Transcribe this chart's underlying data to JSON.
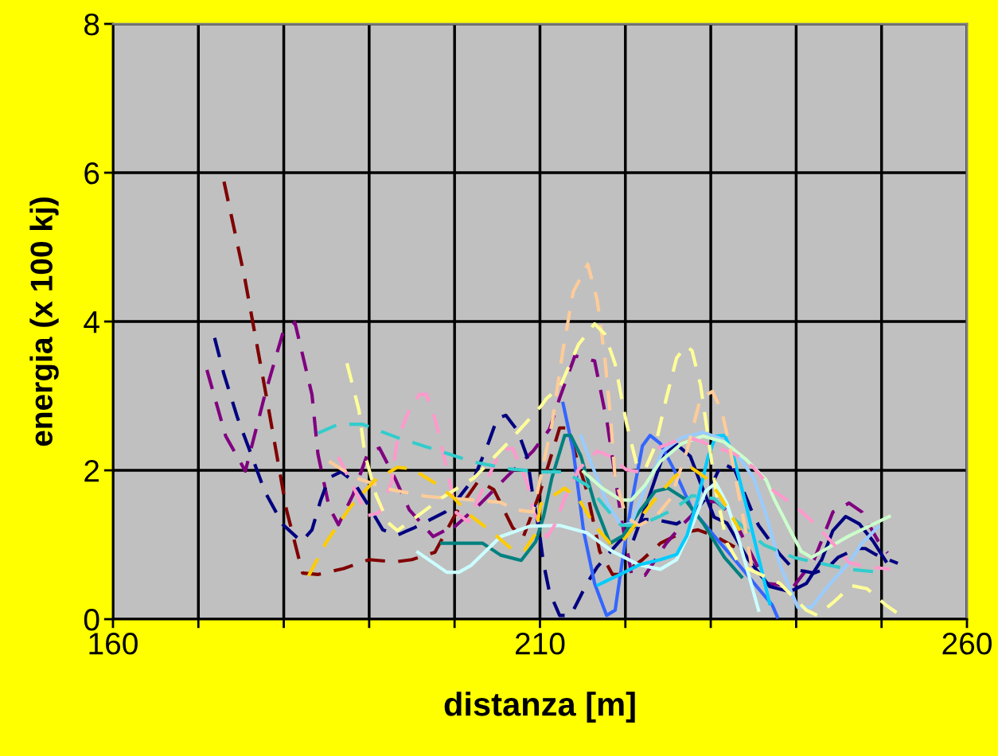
{
  "chart_data": {
    "type": "line",
    "xlabel": "distanza [m]",
    "ylabel": "energia (x 100 kj)",
    "xlim": [
      160,
      260
    ],
    "xticks": [
      160,
      {
        "value": 170,
        "label": null
      },
      {
        "value": 180,
        "label": null
      },
      {
        "value": 190,
        "label": null
      },
      {
        "value": 200,
        "label": null
      },
      210,
      {
        "value": 220,
        "label": null
      },
      {
        "value": 230,
        "label": null
      },
      {
        "value": 240,
        "label": null
      },
      {
        "value": 250,
        "label": null
      },
      260
    ],
    "ylim": [
      0,
      8
    ],
    "yticks": [
      0,
      2,
      4,
      6,
      8
    ],
    "grid": true,
    "marker": "none",
    "series": [
      {
        "color": "#800000",
        "line_style": "dashed",
        "x": [
          173,
          175.4,
          178,
          180.3,
          182.2,
          184,
          187,
          190,
          193,
          195,
          197.7,
          200.2,
          202.8,
          204.6,
          206.8,
          208,
          210,
          212.3,
          213.2,
          215.5,
          217,
          218.5,
          219.7,
          222,
          224.1,
          226.6,
          228.5,
          230.4,
          232.8
        ],
        "values": [
          5.88,
          4.6,
          2.97,
          1.48,
          0.62,
          0.6,
          0.68,
          0.8,
          0.77,
          0.8,
          0.9,
          1.43,
          1.86,
          1.74,
          1.23,
          1.09,
          1.7,
          2.57,
          2.57,
          1.72,
          0.91,
          0.6,
          0.6,
          0.8,
          1.02,
          1.16,
          1.2,
          1.12,
          0.97
        ]
      },
      {
        "color": "#800080",
        "line_style": "dashed",
        "x": [
          171,
          173.2,
          175.5,
          177.8,
          179.9,
          181.3,
          183.3,
          184,
          185.3,
          186.4,
          188.1,
          189.8,
          191.2,
          193,
          194.7,
          197.5,
          199.5
        ],
        "values": [
          3.35,
          2.46,
          1.99,
          3.02,
          3.85,
          3.99,
          3.02,
          2.22,
          1.51,
          1.27,
          1.67,
          2.22,
          2.3,
          1.9,
          1.47,
          1.11,
          1.23
        ]
      },
      {
        "color": "#800080",
        "line_style": "dashed",
        "x": [
          199.9,
          203,
          206,
          209.2,
          211.1,
          212.3,
          214.1,
          216.4,
          217.9,
          219.5,
          220.7,
          222.3,
          224.8,
          226.6,
          229.4,
          230.6,
          232.5,
          234.1,
          236.5,
          239.7,
          242.1,
          244.3,
          246.2,
          247.7,
          249.6,
          250.7
        ],
        "values": [
          1.23,
          1.55,
          1.9,
          2.26,
          2.55,
          2.97,
          3.54,
          3.47,
          2.62,
          1.37,
          0.62,
          0.59,
          1.02,
          1.26,
          1.58,
          1.58,
          1.4,
          1.02,
          0.48,
          0.44,
          0.8,
          1.44,
          1.56,
          1.44,
          1.05,
          0.89
        ]
      },
      {
        "color": "#000080",
        "line_style": "dashed",
        "x": [
          171.9,
          173,
          174.6,
          176,
          177.8,
          179.9,
          182.1,
          183.3,
          184.3,
          185.3,
          186.7,
          188.1,
          189.8,
          191.6,
          193.3,
          195.3,
          198.9,
          200.2,
          202.3,
          204,
          205,
          206,
          207.4,
          208.5,
          209.2,
          209.9,
          210.4,
          211.1,
          212.3,
          213.6,
          215.5,
          216.7,
          218.5,
          220.4,
          222.3,
          223.5,
          226,
          227.8,
          229.4,
          231.3,
          232.8,
          234.7,
          235.6,
          238.1,
          239.7,
          242.1,
          243.7,
          244.9,
          247.1,
          248.1,
          249.3,
          251.9
        ],
        "values": [
          3.78,
          3.29,
          2.7,
          2.27,
          1.71,
          1.27,
          1.04,
          1.2,
          1.59,
          1.9,
          1.98,
          1.86,
          1.55,
          1.2,
          1.13,
          1.23,
          1.44,
          1.59,
          1.9,
          2.38,
          2.7,
          2.74,
          2.53,
          2.18,
          1.63,
          1.19,
          0.76,
          0.37,
          0.05,
          0.05,
          0.48,
          0.7,
          0.94,
          1.19,
          1.34,
          1.34,
          1.28,
          1.4,
          1.62,
          2.1,
          2.01,
          1.48,
          1.26,
          0.87,
          0.67,
          0.62,
          0.69,
          0.83,
          0.95,
          0.95,
          0.87,
          0.75
        ]
      },
      {
        "color": "#000080",
        "line_style": "solid",
        "x": [
          221,
          222.5,
          224.4,
          226,
          227.6,
          228.8,
          230.4,
          231.9,
          234.4,
          236.9,
          239.3,
          241.2,
          243,
          244.3,
          245.8,
          247.4,
          249,
          250.5
        ],
        "values": [
          1.08,
          1.55,
          2.19,
          2.35,
          2.19,
          1.83,
          1.37,
          1.29,
          0.8,
          0.44,
          0.37,
          0.48,
          0.8,
          1.19,
          1.38,
          1.28,
          1.05,
          0.78
        ]
      },
      {
        "color": "#3366ff",
        "line_style": "solid",
        "x": [
          212.7,
          213.9,
          215.1,
          216.4,
          217.8,
          218.8,
          219.7,
          220.7,
          222,
          222.9,
          224.1,
          225.7,
          227.8,
          230.4,
          232.8,
          235.6,
          237.2,
          237.8
        ],
        "values": [
          2.9,
          2.26,
          1.19,
          0.48,
          0.05,
          0.12,
          0.83,
          1.55,
          2.33,
          2.47,
          2.36,
          2.01,
          1.48,
          1.12,
          0.8,
          0.41,
          0.19,
          0.03
        ]
      },
      {
        "color": "#008080",
        "line_style": "solid",
        "x": [
          198.5,
          203.3,
          205.4,
          207.8,
          209.5,
          210.4,
          211.4,
          212.9,
          213.6,
          214.8,
          216.4,
          218.2,
          219.7,
          221.6,
          223.5,
          225,
          226.9,
          229.1,
          231.6,
          233.6
        ],
        "values": [
          1.02,
          1.02,
          0.86,
          0.79,
          1.04,
          1.37,
          1.9,
          2.47,
          2.47,
          2.19,
          1.55,
          1.02,
          1.12,
          1.44,
          1.72,
          1.76,
          1.62,
          1.29,
          0.83,
          0.57
        ]
      },
      {
        "color": "#ccffff",
        "line_style": "solid",
        "x": [
          195.7,
          199.1,
          200.5,
          201.9,
          205.4,
          208.8,
          212.3,
          215.5,
          218.5,
          221.6,
          224.1,
          226,
          227.6,
          229.4,
          230.6,
          231.9,
          233.4,
          235.6
        ],
        "values": [
          0.9,
          0.63,
          0.63,
          0.72,
          1.11,
          1.25,
          1.26,
          1.16,
          0.91,
          0.73,
          0.67,
          0.8,
          1.19,
          1.72,
          1.83,
          1.55,
          1.02,
          0.12
        ]
      },
      {
        "color": "#00ccff",
        "line_style": "solid",
        "x": [
          216.8,
          219.2,
          221.6,
          224.1,
          226,
          227.2,
          228.5,
          229.7,
          230.6,
          231.6,
          232.5,
          234.1,
          235.6,
          236.9
        ],
        "values": [
          0.46,
          0.59,
          0.73,
          0.8,
          0.87,
          1.12,
          1.62,
          2.19,
          2.46,
          2.47,
          2.26,
          1.55,
          0.83,
          0.21
        ]
      },
      {
        "color": "#99ccff",
        "line_style": "solid",
        "x": [
          214.8,
          216.4,
          217.9,
          219.5,
          220.7,
          222.3,
          224.4,
          226.6,
          229.1,
          230.9,
          232.8,
          235,
          236.5,
          238.1,
          240.2,
          241.8,
          243.7,
          246.2,
          247.7,
          249.6
        ],
        "values": [
          2.46,
          1.98,
          1.55,
          1.26,
          1.29,
          1.76,
          2.26,
          2.44,
          2.51,
          2.44,
          2.26,
          1.9,
          1.4,
          0.73,
          0.16,
          0.16,
          0.44,
          0.76,
          1.02,
          1.24
        ]
      },
      {
        "color": "#ccffcc",
        "line_style": "solid",
        "x": [
          215.1,
          217.3,
          219.5,
          220.7,
          222.3,
          224.1,
          226.6,
          229.1,
          231.6,
          234.1,
          236.5,
          237.4,
          239,
          240.6,
          241.8,
          243,
          246.2,
          250.9
        ],
        "values": [
          1.98,
          1.76,
          1.6,
          1.6,
          1.8,
          2.12,
          2.36,
          2.46,
          2.38,
          2.15,
          1.87,
          1.62,
          1.26,
          0.91,
          0.83,
          0.91,
          1.12,
          1.38
        ]
      },
      {
        "color": "#ff99cc",
        "line_style": "dashed",
        "x": [
          186.4,
          189.8,
          191.2,
          192.6,
          193.3,
          194.7,
          195.9,
          196.7,
          197.7,
          199.1,
          200.2,
          201.6,
          203.6,
          205.4,
          206.8,
          208.5,
          209.3,
          210.8,
          211.7,
          212.9,
          214.5,
          216.7,
          218.2,
          220.1,
          221.6,
          222.9
        ],
        "values": [
          2.18,
          1.39,
          1.43,
          1.83,
          2.42,
          2.81,
          3.02,
          3.02,
          2.7,
          2.02,
          1.43,
          1.31,
          1.83,
          2.26,
          2.3,
          1.83,
          1.43,
          1.1,
          1.26,
          1.62,
          2.01,
          2.26,
          2.19,
          2.01,
          1.98,
          2.09
        ]
      },
      {
        "color": "#ff99cc",
        "line_style": "dashed",
        "x": [
          223.8,
          226.3,
          228.1,
          230.9,
          232.8,
          235,
          237.4,
          240,
          242.1,
          244.3,
          246.2,
          248.1,
          251
        ],
        "values": [
          2.3,
          2.41,
          2.42,
          2.3,
          2.22,
          2.04,
          1.72,
          1.51,
          1.29,
          1.02,
          0.76,
          0.71,
          0.67
        ]
      },
      {
        "color": "#33cccc",
        "line_style": "dashed",
        "x": [
          184,
          186.4,
          189.2,
          193.3,
          197.7,
          202.3,
          206.4,
          210.1,
          212.9,
          215.5,
          217.6,
          219.5,
          221.6,
          223.8,
          225.7,
          227.8,
          230.4,
          232.8,
          236.2,
          239.7,
          242.8,
          246.2,
          249
        ],
        "values": [
          2.5,
          2.62,
          2.62,
          2.44,
          2.28,
          2.11,
          2.02,
          1.98,
          1.98,
          1.8,
          1.51,
          1.26,
          1.26,
          1.37,
          1.48,
          1.66,
          1.62,
          1.34,
          1.0,
          0.83,
          0.75,
          0.67,
          0.64
        ]
      },
      {
        "color": "#ffcc99",
        "line_style": "dashed",
        "x": [
          185.3,
          188.4,
          192.6,
          196.7,
          202.3,
          205.4,
          207.1,
          209.2,
          211.4,
          212.7,
          213.9,
          215.6,
          216.7,
          217.6,
          218.2,
          218.8,
          220.1,
          221.6,
          223.5,
          225.3,
          227.2,
          228.8,
          230.2,
          231.3,
          232.2,
          233.2,
          234.1,
          235
        ],
        "values": [
          2.12,
          1.9,
          1.74,
          1.65,
          1.6,
          1.57,
          1.47,
          1.44,
          2.62,
          3.62,
          4.4,
          4.77,
          4.29,
          3.51,
          2.79,
          1.9,
          1.37,
          1.26,
          1.37,
          1.62,
          2.26,
          2.97,
          3.06,
          2.79,
          2.33,
          1.72,
          1.19,
          0.55
        ]
      },
      {
        "color": "#ffff99",
        "line_style": "dashed",
        "x": [
          187.4,
          188.8,
          189.5,
          190.8,
          192.2,
          193.3,
          195.7,
          198.5,
          202.3,
          206,
          210.1,
          210.8,
          212.3,
          214.5,
          216.4,
          217.6,
          218.8,
          220.1,
          221.3,
          222.3,
          223.5,
          224.8,
          226,
          227.1,
          227.8,
          228.8,
          229.7,
          230.6,
          231.9,
          233.4,
          238.1,
          241.2,
          242.5,
          244.3,
          246.5,
          248.3,
          250.5,
          252.1
        ],
        "values": [
          3.44,
          2.81,
          2.22,
          1.67,
          1.3,
          1.19,
          1.39,
          1.63,
          1.9,
          2.34,
          2.86,
          2.97,
          3.11,
          3.69,
          3.97,
          3.83,
          3.43,
          2.65,
          2.09,
          2.01,
          2.33,
          2.97,
          3.51,
          3.67,
          3.61,
          3.15,
          2.44,
          1.72,
          1.02,
          0.73,
          0.48,
          0.12,
          0.05,
          0.22,
          0.45,
          0.41,
          0.19,
          0.06
        ]
      },
      {
        "color": "#ffcc00",
        "line_style": "dashed",
        "x": [
          182.9,
          185,
          187.8,
          190.6,
          193.3,
          195,
          197.7,
          199.9,
          201.9,
          204.6,
          206.8,
          208.2,
          209.5,
          210.1,
          212.9,
          214.5,
          216.4,
          218.2,
          219.7,
          221.6,
          223.8,
          226,
          227.8,
          229.4,
          230.9,
          232.2,
          233.4
        ],
        "values": [
          0.58,
          1.04,
          1.51,
          1.86,
          2.04,
          2.02,
          1.83,
          1.63,
          1.39,
          1.15,
          0.93,
          0.93,
          1.15,
          1.55,
          1.76,
          1.62,
          1.26,
          1.02,
          1.05,
          1.34,
          1.66,
          1.94,
          2.03,
          1.9,
          1.69,
          1.44,
          1.19
        ]
      }
    ]
  }
}
